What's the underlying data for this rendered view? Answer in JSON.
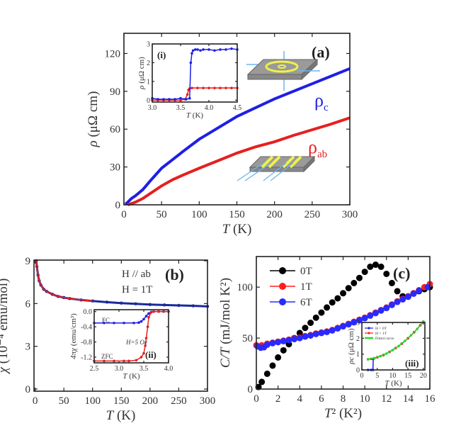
{
  "chart_data": [
    {
      "id": "a",
      "type": "line",
      "panel_label": "(a)",
      "xlabel_sym": "T",
      "xlabel_unit": " (K)",
      "ylabel_sym": "ρ",
      "ylabel_unit": " (μΩ cm)",
      "xlim": [
        0,
        300
      ],
      "ylim": [
        0,
        136
      ],
      "x_ticks": [
        "0",
        "50",
        "100",
        "150",
        "200",
        "250",
        "300"
      ],
      "y_ticks": [
        "0",
        "30",
        "60",
        "90",
        "120"
      ],
      "series": [
        {
          "symbol": "ρ",
          "sub": "c",
          "color": "#1f1fe6",
          "x": [
            2,
            5,
            10,
            15,
            25,
            35,
            50,
            65,
            80,
            100,
            125,
            150,
            175,
            200,
            225,
            250,
            275,
            300
          ],
          "y": [
            0.5,
            2,
            5,
            7,
            12,
            19,
            29,
            36,
            43,
            52,
            61,
            70,
            77,
            84,
            90,
            96,
            102,
            108
          ]
        },
        {
          "symbol": "ρ",
          "sub": "ab",
          "color": "#e61f1f",
          "x": [
            5,
            10,
            15,
            25,
            35,
            50,
            65,
            80,
            100,
            125,
            150,
            175,
            200,
            225,
            250,
            275,
            300
          ],
          "y": [
            0,
            1,
            2,
            5,
            9,
            15,
            20,
            24,
            29,
            35,
            41,
            46,
            50,
            55,
            59.5,
            64,
            69
          ]
        }
      ]
    },
    {
      "id": "i",
      "type": "line",
      "panel_label": "(i)",
      "xlabel_sym": "T",
      "xlabel_unit": " (K)",
      "ylabel_sym": "ρ",
      "ylabel_unit": " (μΩ cm)",
      "xlim": [
        3.0,
        4.5
      ],
      "ylim": [
        -0.1,
        3
      ],
      "x_ticks": [
        "3.0",
        "3.5",
        "4.0",
        "4.5"
      ],
      "y_ticks": [
        "0",
        "1",
        "2",
        "3"
      ],
      "series": [
        {
          "color": "#e61f1f",
          "x": [
            3.0,
            3.1,
            3.2,
            3.3,
            3.4,
            3.5,
            3.58,
            3.62,
            3.64,
            3.66,
            3.7,
            3.8,
            3.9,
            4.0,
            4.1,
            4.2,
            4.3,
            4.4,
            4.5
          ],
          "y": [
            0,
            0,
            0,
            0,
            0,
            0,
            0.05,
            0.3,
            0.55,
            0.62,
            0.65,
            0.65,
            0.65,
            0.65,
            0.65,
            0.65,
            0.65,
            0.65,
            0.65
          ]
        },
        {
          "color": "#1f1fe6",
          "x": [
            3.0,
            3.1,
            3.2,
            3.3,
            3.4,
            3.5,
            3.6,
            3.66,
            3.68,
            3.7,
            3.72,
            3.76,
            3.8,
            3.85,
            3.9,
            4.0,
            4.1,
            4.2,
            4.3,
            4.4,
            4.5
          ],
          "y": [
            0.1,
            0.05,
            0.05,
            0.05,
            0.05,
            0.1,
            0.05,
            0.1,
            2.0,
            2.5,
            2.65,
            2.7,
            2.7,
            2.65,
            2.7,
            2.7,
            2.65,
            2.7,
            2.7,
            2.75,
            2.7
          ]
        }
      ]
    },
    {
      "id": "b",
      "type": "scatter",
      "panel_label": "(b)",
      "annotations": [
        "H // ab",
        "H = 1T"
      ],
      "xlabel_sym": "T",
      "xlabel_unit": " (K)",
      "ylabel_sym": "χ",
      "ylabel_unit": " (10⁻⁴ emu/mol)",
      "xlim": [
        -2,
        300
      ],
      "ylim": [
        -0.15,
        9.05
      ],
      "x_ticks": [
        "0",
        "50",
        "100",
        "150",
        "200",
        "250",
        "300"
      ],
      "y_ticks": [
        "0",
        "3",
        "6",
        "9"
      ],
      "series": [
        {
          "color": "#1a2a9a",
          "x": [
            2,
            3,
            5,
            7,
            10,
            15,
            20,
            30,
            40,
            50,
            60,
            80,
            100,
            125,
            150,
            175,
            200,
            225,
            250,
            275,
            300
          ],
          "y": [
            9.0,
            8.6,
            8.0,
            7.6,
            7.3,
            7.0,
            6.85,
            6.65,
            6.5,
            6.42,
            6.35,
            6.25,
            6.18,
            6.1,
            6.03,
            5.98,
            5.93,
            5.9,
            5.87,
            5.84,
            5.8
          ]
        },
        {
          "color": "#e61f1f",
          "line_only": true,
          "x": [
            2,
            3,
            5,
            7,
            10,
            15,
            20,
            30,
            40,
            50,
            60,
            80,
            100
          ],
          "y": [
            9.0,
            8.6,
            8.0,
            7.6,
            7.3,
            7.0,
            6.85,
            6.65,
            6.5,
            6.42,
            6.35,
            6.25,
            6.18
          ]
        }
      ]
    },
    {
      "id": "ii",
      "type": "line",
      "panel_label": "(ii)",
      "annotations": [
        "FC",
        "ZFC",
        "H=5 Oe"
      ],
      "xlabel_sym": "T",
      "xlabel_unit": " (K)",
      "ylabel_sym": "4πχ",
      "ylabel_unit": " (emu/cm³)",
      "xlim": [
        2.5,
        4.0
      ],
      "ylim": [
        -1.35,
        0.05
      ],
      "x_ticks": [
        "2.5",
        "3.0",
        "3.5",
        "4.0"
      ],
      "y_ticks": [
        "0.0",
        "-0.4",
        "-0.8",
        "-1.2"
      ],
      "series": [
        {
          "name": "FC",
          "color": "#1f1fe6",
          "x": [
            2.5,
            2.7,
            2.9,
            3.1,
            3.3,
            3.4,
            3.45,
            3.5,
            3.55,
            3.6,
            3.65,
            3.7,
            3.8,
            3.9,
            4.0
          ],
          "y": [
            -0.3,
            -0.3,
            -0.3,
            -0.3,
            -0.3,
            -0.29,
            -0.26,
            -0.2,
            -0.12,
            -0.05,
            -0.01,
            0,
            0,
            0,
            0
          ]
        },
        {
          "name": "ZFC",
          "color": "#e61f1f",
          "x": [
            2.5,
            2.7,
            2.9,
            3.1,
            3.2,
            3.35,
            3.45,
            3.5,
            3.53,
            3.55,
            3.58,
            3.6,
            3.65,
            3.7,
            3.8,
            3.9,
            4.0
          ],
          "y": [
            -1.3,
            -1.3,
            -1.3,
            -1.3,
            -1.3,
            -1.28,
            -1.2,
            -1.1,
            -0.9,
            -0.7,
            -0.4,
            -0.15,
            -0.02,
            0,
            0,
            0,
            0
          ]
        }
      ]
    },
    {
      "id": "c",
      "type": "scatter",
      "panel_label": "(c)",
      "xlabel_sym": "T",
      "xlabel_unit": "² (K²)",
      "ylabel_sym": "C/T",
      "ylabel_unit": " (mJ/mol K²)",
      "xlim": [
        0,
        16
      ],
      "ylim": [
        0,
        130
      ],
      "x_ticks": [
        "0",
        "2",
        "4",
        "6",
        "8",
        "10",
        "12",
        "14",
        "16"
      ],
      "y_ticks": [
        "0",
        "50",
        "100"
      ],
      "legend_position": "top-left",
      "series": [
        {
          "name": "0T",
          "color": "#000000",
          "x": [
            0.2,
            0.5,
            1,
            1.5,
            2,
            2.5,
            3,
            3.5,
            4,
            4.5,
            5,
            5.5,
            6,
            6.5,
            7,
            7.5,
            8,
            8.5,
            9,
            9.5,
            10,
            10.5,
            11,
            11.5,
            12,
            12.5,
            13,
            13.5,
            14,
            14.5,
            15,
            15.5,
            16
          ],
          "y": [
            2,
            7,
            15,
            23,
            31,
            38,
            44,
            50,
            55,
            60,
            65,
            70,
            75,
            80,
            85,
            89,
            94,
            99,
            104,
            109,
            115,
            120,
            122,
            120,
            113,
            104,
            96,
            91,
            91,
            94,
            96,
            98,
            100
          ]
        },
        {
          "name": "1T",
          "color": "#ff1f1f",
          "x": [
            0,
            0.5,
            1,
            1.5,
            2,
            2.5,
            3,
            3.5,
            4,
            4.5,
            5,
            5.5,
            6,
            6.5,
            7,
            7.5,
            8,
            8.5,
            9,
            9.5,
            10,
            10.5,
            11,
            11.5,
            12,
            12.5,
            13,
            13.5,
            14,
            14.5,
            15,
            15.5,
            16
          ],
          "y": [
            43,
            43,
            44.5,
            45.5,
            46.5,
            47.5,
            48.5,
            49.5,
            50.5,
            52,
            53,
            54.5,
            55.5,
            56.5,
            58,
            60,
            62,
            64,
            66,
            68,
            70,
            72.5,
            75,
            77.5,
            80,
            83,
            86,
            88.5,
            91,
            94,
            97,
            100,
            103
          ]
        },
        {
          "name": "6T",
          "color": "#2a2aff",
          "x": [
            0.1,
            0.4,
            0.7,
            1,
            1.5,
            2,
            2.5,
            3,
            3.5,
            4,
            4.5,
            5,
            5.5,
            6,
            6.5,
            7,
            7.5,
            8,
            8.5,
            9,
            9.5,
            10,
            10.5,
            11,
            11.5,
            12,
            12.5,
            13,
            13.5,
            14,
            14.5,
            15,
            15.8
          ],
          "y": [
            42,
            40.5,
            41,
            43.5,
            45,
            46,
            47,
            48,
            49,
            50,
            51.5,
            52.5,
            54,
            55,
            56,
            57.5,
            59.5,
            61.5,
            63.5,
            65.5,
            67.5,
            69.5,
            72,
            74.5,
            77,
            79.5,
            82.5,
            85.5,
            88,
            90.5,
            93.5,
            96.5,
            100
          ]
        }
      ]
    },
    {
      "id": "iii",
      "type": "line",
      "panel_label": "(iii)",
      "xlabel_sym": "T",
      "xlabel_unit": " (K)",
      "ylabel_sym": "ρc",
      "ylabel_unit": " (μΩ cm)",
      "xlim": [
        0,
        20.5
      ],
      "ylim": [
        0,
        3
      ],
      "x_ticks": [
        "0",
        "5",
        "10",
        "15",
        "20"
      ],
      "y_ticks": [
        "0",
        "1",
        "2",
        "3"
      ],
      "series": [
        {
          "name": "H = 0T",
          "color": "#1f1fe6",
          "x": [
            2,
            3,
            3.6,
            3.7,
            5,
            7,
            9,
            11,
            13,
            15,
            17,
            19,
            20
          ],
          "y": [
            0,
            0,
            0,
            0.7,
            0.8,
            0.94,
            1.14,
            1.38,
            1.66,
            2.0,
            2.38,
            2.82,
            3.05
          ]
        },
        {
          "name": "H = 1T",
          "color": "#ff1f1f",
          "x": [
            2,
            3,
            4,
            5,
            7,
            9,
            11,
            13,
            15,
            17,
            19,
            20
          ],
          "y": [
            0.67,
            0.7,
            0.74,
            0.8,
            0.94,
            1.14,
            1.38,
            1.66,
            2.0,
            2.38,
            2.82,
            3.05
          ]
        },
        {
          "name": "Fitted curve",
          "color": "#22dd22",
          "x": [
            2,
            4,
            6,
            8,
            10,
            12,
            14,
            16,
            18,
            20
          ],
          "y": [
            0.67,
            0.75,
            0.87,
            1.03,
            1.25,
            1.51,
            1.83,
            2.19,
            2.59,
            3.05
          ]
        }
      ]
    }
  ]
}
